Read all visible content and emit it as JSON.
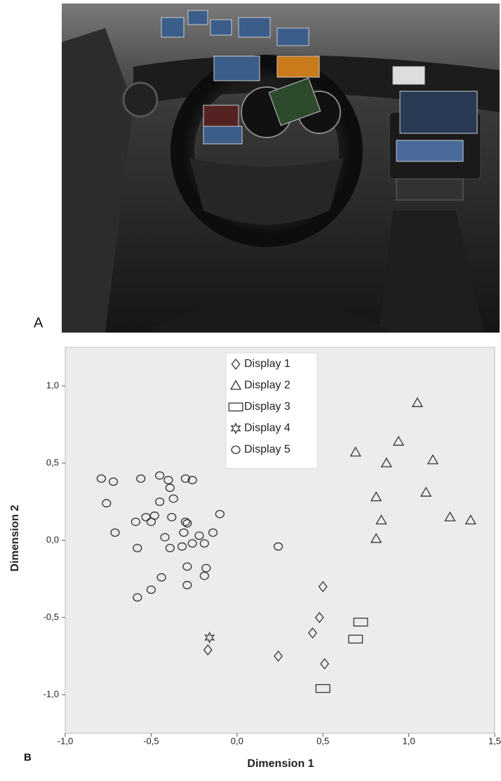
{
  "figure": {
    "panel_a_label": "A",
    "panel_b_label": "B"
  },
  "chart_data": {
    "type": "scatter",
    "x_label": "Dimension 1",
    "y_label": "Dimension 2",
    "xlim": [
      -1.0,
      1.5
    ],
    "ylim": [
      -1.25,
      1.25
    ],
    "xticks": [
      {
        "value": -1.0,
        "label": "-1,0"
      },
      {
        "value": -0.5,
        "label": "-0,5"
      },
      {
        "value": 0.0,
        "label": "0,0"
      },
      {
        "value": 0.5,
        "label": "0,5"
      },
      {
        "value": 1.0,
        "label": "1,0"
      },
      {
        "value": 1.5,
        "label": "1,5"
      }
    ],
    "yticks": [
      {
        "value": -1.0,
        "label": "-1,0"
      },
      {
        "value": -0.5,
        "label": "-0,5"
      },
      {
        "value": 0.0,
        "label": "0,0"
      },
      {
        "value": 0.5,
        "label": "0,5"
      },
      {
        "value": 1.0,
        "label": "1,0"
      }
    ],
    "grid": false,
    "legend": "top",
    "series": [
      {
        "name": "Display 1",
        "marker": "diamond",
        "color": "#333333",
        "x": [
          0.5,
          0.48,
          0.44,
          0.51,
          0.24,
          -0.17
        ],
        "values": [
          -0.3,
          -0.5,
          -0.6,
          -0.8,
          -0.75,
          -0.71
        ]
      },
      {
        "name": "Display 2",
        "marker": "triangle",
        "color": "#333333",
        "x": [
          1.05,
          0.94,
          0.69,
          0.87,
          1.14,
          0.81,
          1.1,
          0.84,
          1.24,
          1.36,
          0.81
        ],
        "values": [
          0.89,
          0.64,
          0.57,
          0.5,
          0.52,
          0.28,
          0.31,
          0.13,
          0.15,
          0.13,
          0.01
        ]
      },
      {
        "name": "Display 3",
        "marker": "rect",
        "color": "#333333",
        "x": [
          0.72,
          0.69,
          0.5
        ],
        "values": [
          -0.53,
          -0.64,
          -0.96
        ]
      },
      {
        "name": "Display 4",
        "marker": "star",
        "color": "#333333",
        "x": [
          -0.16
        ],
        "values": [
          -0.63
        ]
      },
      {
        "name": "Display 5",
        "marker": "circle",
        "color": "#333333",
        "x": [
          -0.79,
          -0.72,
          -0.56,
          -0.45,
          -0.4,
          -0.3,
          -0.26,
          -0.39,
          -0.37,
          -0.45,
          -0.76,
          -0.59,
          -0.53,
          -0.48,
          -0.5,
          -0.38,
          -0.3,
          -0.31,
          -0.29,
          -0.26,
          -0.22,
          -0.19,
          -0.14,
          -0.1,
          -0.71,
          -0.58,
          -0.42,
          -0.39,
          -0.32,
          -0.29,
          -0.18,
          -0.19,
          -0.44,
          -0.5,
          -0.29,
          -0.58,
          0.24
        ],
        "values": [
          0.4,
          0.38,
          0.4,
          0.42,
          0.39,
          0.4,
          0.39,
          0.34,
          0.27,
          0.25,
          0.24,
          0.12,
          0.15,
          0.16,
          0.12,
          0.15,
          0.12,
          0.05,
          0.11,
          -0.02,
          0.03,
          -0.02,
          0.05,
          0.17,
          0.05,
          -0.05,
          0.02,
          -0.05,
          -0.04,
          -0.17,
          -0.18,
          -0.23,
          -0.24,
          -0.32,
          -0.29,
          -0.37,
          -0.04
        ]
      }
    ]
  }
}
